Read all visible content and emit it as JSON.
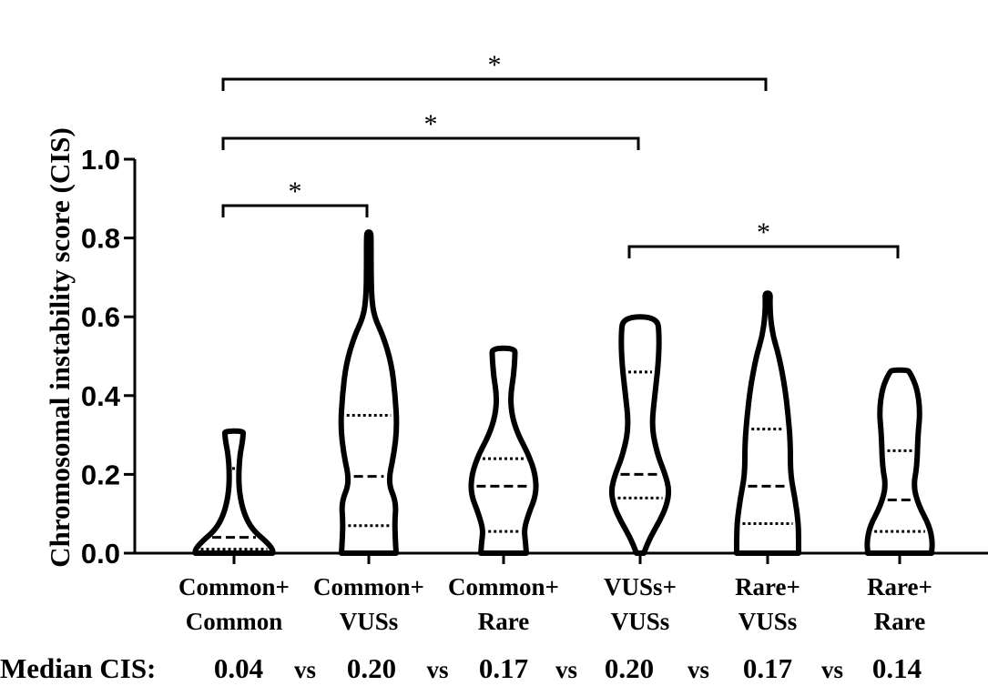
{
  "chart_data": {
    "type": "violin",
    "ylabel": "Chromosomal instability score (CIS)",
    "ylim": [
      0,
      1.0
    ],
    "yticks": [
      "0.0",
      "0.2",
      "0.4",
      "0.6",
      "0.8",
      "1.0"
    ],
    "categories": [
      [
        "Common+",
        "Common"
      ],
      [
        "Common+",
        "VUSs"
      ],
      [
        "Common+",
        "Rare"
      ],
      [
        "VUSs+",
        "VUSs"
      ],
      [
        "Rare+",
        "VUSs"
      ],
      [
        "Rare+",
        "Rare"
      ]
    ],
    "groups": [
      {
        "min": 0.0,
        "max": 0.31,
        "q1": 0.01,
        "median": 0.04,
        "q3": 0.215,
        "shape": [
          [
            0.0,
            0.85
          ],
          [
            0.01,
            0.85
          ],
          [
            0.03,
            0.7
          ],
          [
            0.06,
            0.4
          ],
          [
            0.1,
            0.22
          ],
          [
            0.15,
            0.12
          ],
          [
            0.2,
            0.1
          ],
          [
            0.25,
            0.13
          ],
          [
            0.28,
            0.18
          ],
          [
            0.3,
            0.2
          ],
          [
            0.31,
            0.2
          ]
        ]
      },
      {
        "min": 0.0,
        "max": 0.815,
        "q1": 0.07,
        "median": 0.195,
        "q3": 0.35,
        "shape": [
          [
            0.0,
            0.6
          ],
          [
            0.04,
            0.58
          ],
          [
            0.08,
            0.57
          ],
          [
            0.13,
            0.6
          ],
          [
            0.18,
            0.42
          ],
          [
            0.25,
            0.55
          ],
          [
            0.32,
            0.62
          ],
          [
            0.4,
            0.58
          ],
          [
            0.48,
            0.5
          ],
          [
            0.55,
            0.32
          ],
          [
            0.6,
            0.12
          ],
          [
            0.65,
            0.06
          ],
          [
            0.72,
            0.05
          ],
          [
            0.8,
            0.05
          ],
          [
            0.815,
            0.04
          ]
        ]
      },
      {
        "min": 0.0,
        "max": 0.52,
        "q1": 0.055,
        "median": 0.17,
        "q3": 0.24,
        "shape": [
          [
            0.0,
            0.5
          ],
          [
            0.03,
            0.48
          ],
          [
            0.06,
            0.45
          ],
          [
            0.1,
            0.55
          ],
          [
            0.15,
            0.72
          ],
          [
            0.2,
            0.7
          ],
          [
            0.25,
            0.55
          ],
          [
            0.3,
            0.32
          ],
          [
            0.35,
            0.18
          ],
          [
            0.4,
            0.15
          ],
          [
            0.45,
            0.22
          ],
          [
            0.5,
            0.25
          ],
          [
            0.52,
            0.25
          ]
        ]
      },
      {
        "min": 0.0,
        "max": 0.6,
        "q1": 0.14,
        "median": 0.2,
        "q3": 0.46,
        "shape": [
          [
            0.0,
            0.08
          ],
          [
            0.04,
            0.22
          ],
          [
            0.08,
            0.42
          ],
          [
            0.12,
            0.58
          ],
          [
            0.16,
            0.64
          ],
          [
            0.2,
            0.55
          ],
          [
            0.25,
            0.38
          ],
          [
            0.32,
            0.25
          ],
          [
            0.4,
            0.32
          ],
          [
            0.48,
            0.4
          ],
          [
            0.55,
            0.42
          ],
          [
            0.6,
            0.38
          ]
        ]
      },
      {
        "min": 0.0,
        "max": 0.66,
        "q1": 0.075,
        "median": 0.17,
        "q3": 0.315,
        "shape": [
          [
            0.0,
            0.68
          ],
          [
            0.04,
            0.68
          ],
          [
            0.08,
            0.67
          ],
          [
            0.14,
            0.6
          ],
          [
            0.2,
            0.5
          ],
          [
            0.28,
            0.5
          ],
          [
            0.35,
            0.45
          ],
          [
            0.42,
            0.38
          ],
          [
            0.5,
            0.25
          ],
          [
            0.55,
            0.12
          ],
          [
            0.6,
            0.06
          ],
          [
            0.64,
            0.05
          ],
          [
            0.66,
            0.06
          ]
        ]
      },
      {
        "min": 0.0,
        "max": 0.465,
        "q1": 0.055,
        "median": 0.135,
        "q3": 0.26,
        "shape": [
          [
            0.0,
            0.7
          ],
          [
            0.03,
            0.72
          ],
          [
            0.07,
            0.65
          ],
          [
            0.12,
            0.42
          ],
          [
            0.17,
            0.3
          ],
          [
            0.22,
            0.38
          ],
          [
            0.3,
            0.4
          ],
          [
            0.36,
            0.45
          ],
          [
            0.42,
            0.38
          ],
          [
            0.46,
            0.22
          ],
          [
            0.465,
            0.15
          ]
        ]
      }
    ],
    "significance": [
      {
        "from": 0,
        "to": 1,
        "label": "*"
      },
      {
        "from": 0,
        "to": 3,
        "label": "*"
      },
      {
        "from": 0,
        "to": 4,
        "label": "*"
      },
      {
        "from": 3,
        "to": 5,
        "label": "*"
      }
    ],
    "median_row": {
      "label": "Median CIS:",
      "values": [
        "0.04",
        "0.20",
        "0.17",
        "0.20",
        "0.17",
        "0.14"
      ],
      "separator": "vs"
    }
  }
}
